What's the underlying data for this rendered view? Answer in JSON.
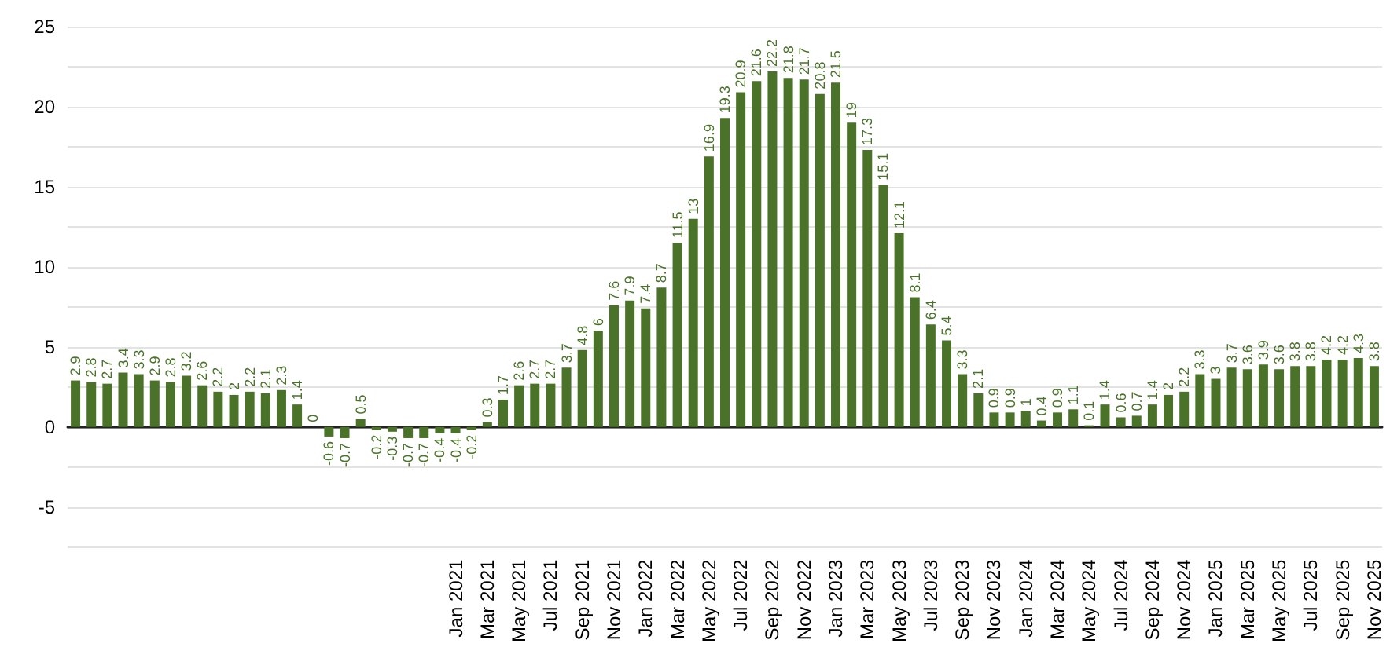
{
  "chart_data": {
    "type": "bar",
    "categories": [
      null,
      null,
      null,
      null,
      null,
      null,
      null,
      null,
      null,
      null,
      null,
      null,
      null,
      null,
      null,
      null,
      null,
      null,
      null,
      null,
      null,
      null,
      null,
      null,
      "Jan 2021",
      null,
      "Mar 2021",
      null,
      "May 2021",
      null,
      "Jul 2021",
      null,
      "Sep 2021",
      null,
      "Nov 2021",
      null,
      "Jan 2022",
      null,
      "Mar 2022",
      null,
      "May 2022",
      null,
      "Jul 2022",
      null,
      "Sep 2022",
      null,
      "Nov 2022",
      null,
      "Jan 2023",
      null,
      "Mar 2023",
      null,
      "May 2023",
      null,
      "Jul 2023",
      null,
      "Sep 2023",
      null,
      "Nov 2023",
      null,
      "Jan 2024",
      null,
      "Mar 2024",
      null,
      "May 2024",
      null,
      "Jul 2024",
      null,
      "Sep 2024",
      null,
      "Nov 2024",
      null,
      "Jan 2025",
      null,
      "Mar 2025",
      null,
      "May 2025",
      null,
      "Jul 2025",
      null,
      "Sep 2025",
      null,
      "Nov 2025"
    ],
    "values": [
      2.9,
      2.8,
      2.7,
      3.4,
      3.3,
      2.9,
      2.8,
      3.2,
      2.6,
      2.2,
      2,
      2.2,
      2.1,
      2.3,
      1.4,
      0,
      -0.6,
      -0.7,
      0.5,
      -0.2,
      -0.3,
      -0.7,
      -0.7,
      -0.4,
      -0.4,
      -0.2,
      0.3,
      1.7,
      2.6,
      2.7,
      2.7,
      3.7,
      4.8,
      6,
      7.6,
      7.9,
      7.4,
      8.7,
      11.5,
      13,
      16.9,
      19.3,
      20.9,
      21.6,
      22.2,
      21.8,
      21.7,
      20.8,
      21.5,
      19,
      17.3,
      15.1,
      12.1,
      8.1,
      6.4,
      5.4,
      3.3,
      2.1,
      0.9,
      0.9,
      1,
      0.4,
      0.9,
      1.1,
      0.1,
      1.4,
      0.6,
      0.7,
      1.4,
      2,
      2.2,
      3.3,
      3,
      3.7,
      3.6,
      3.9,
      3.6,
      3.8,
      3.8,
      4.2,
      4.2,
      4.3,
      3.8
    ],
    "color": "#4a7329",
    "ylim": [
      -7.5,
      25
    ],
    "yticks": [
      {
        "value": -7.5,
        "label": null
      },
      -5,
      {
        "value": -2.5,
        "label": null
      },
      0,
      {
        "value": 2.5,
        "label": null
      },
      5,
      {
        "value": 7.5,
        "label": null
      },
      10,
      {
        "value": 12.5,
        "label": null
      },
      15,
      {
        "value": 17.5,
        "label": null
      },
      20,
      {
        "value": 22.5,
        "label": null
      },
      25
    ],
    "grid": true,
    "data_labels": true
  }
}
